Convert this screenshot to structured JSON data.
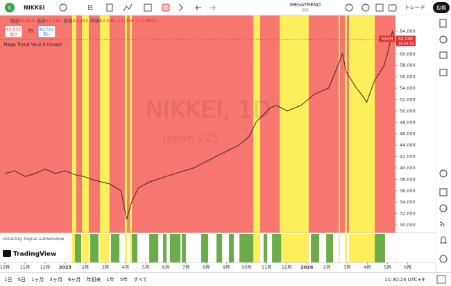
{
  "toolbar": {
    "avatar": "K",
    "symbol": "NIKKEI",
    "timeframe": "日",
    "layout_name": "MEGATREND",
    "save_status": "保存",
    "trade": "トレード",
    "publish": "投稿"
  },
  "legend": {
    "ohlc": [
      {
        "label": "始値",
        "value": "63,644"
      },
      {
        "label": "高値",
        "value": "63,784"
      },
      {
        "label": "安値",
        "value": "62,462"
      },
      {
        "label": "終値",
        "value": "62,548"
      }
    ],
    "change": "−1,266 (−1.98%)",
    "sell_price": "62,532",
    "sell": "売り",
    "spread": "20",
    "buy_price": "62,552",
    "buy": "買い",
    "indicator": "Mega Trend Ver2.0 (close)"
  },
  "watermark": {
    "symbol": "NIKKEI, 1D",
    "description": "Japan 225"
  },
  "chart_data": {
    "type": "line",
    "x": [
      0,
      0.5,
      1,
      1.5,
      2,
      2.5,
      3,
      3.5,
      3.9,
      4.5,
      5.2,
      5.77,
      6.05,
      6.29,
      6.63,
      7.15,
      8,
      9.38,
      10.76,
      11.62,
      12.13,
      12.47,
      13.16,
      13.5,
      14.02,
      14.71,
      15.4,
      16.08,
      16.43,
      16.77,
      16.94,
      17.11,
      17.46,
      17.8,
      17.97,
      18.32,
      18.66,
      18.83,
      19.0,
      19.25,
      19.38
    ],
    "series": [
      {
        "color": "#2a2a2a",
        "values": [
          39000,
          39500,
          38500,
          39000,
          39800,
          39000,
          39500,
          38800,
          38500,
          37800,
          37200,
          36000,
          31000,
          34000,
          36500,
          37500,
          38500,
          40000,
          42500,
          44000,
          45500,
          48000,
          50500,
          51000,
          50000,
          51000,
          53000,
          54000,
          57000,
          60000,
          57000,
          56000,
          54000,
          52500,
          51500,
          55000,
          57000,
          58000,
          60000,
          64000,
          62548
        ]
      }
    ],
    "xlim": [
      -0.24,
      19.4
    ],
    "ylim": [
      28660,
      66800
    ],
    "xticks": [
      {
        "value": 0,
        "label": "10月"
      },
      {
        "value": 1,
        "label": "11月"
      },
      {
        "value": 2,
        "label": "12月"
      },
      {
        "value": 3,
        "label": "2025"
      },
      {
        "value": 4,
        "label": "2月"
      },
      {
        "value": 5,
        "label": "3月"
      },
      {
        "value": 6,
        "label": "4月"
      },
      {
        "value": 7,
        "label": "5月"
      },
      {
        "value": 8,
        "label": "6月"
      },
      {
        "value": 9,
        "label": "7月"
      },
      {
        "value": 10,
        "label": "8月"
      },
      {
        "value": 11,
        "label": "9月"
      },
      {
        "value": 12,
        "label": "10月"
      },
      {
        "value": 13,
        "label": "11月"
      },
      {
        "value": 14,
        "label": "12月"
      },
      {
        "value": 15,
        "label": "2026"
      },
      {
        "value": 16,
        "label": "2月"
      },
      {
        "value": 17,
        "label": "3月"
      },
      {
        "value": 18,
        "label": "4月"
      },
      {
        "value": 19,
        "label": "5月"
      },
      {
        "value": 20,
        "label": "6月"
      }
    ],
    "yticks": [
      {
        "value": 30000,
        "label": "30,000"
      },
      {
        "value": 32000,
        "label": "32,000"
      },
      {
        "value": 34000,
        "label": "34,000"
      },
      {
        "value": 36000,
        "label": "36,000"
      },
      {
        "value": 38000,
        "label": "38,000"
      },
      {
        "value": 40000,
        "label": "40,000"
      },
      {
        "value": 42000,
        "label": "42,000"
      },
      {
        "value": 44000,
        "label": "44,000"
      },
      {
        "value": 46000,
        "label": "46,000"
      },
      {
        "value": 48000,
        "label": "48,000"
      },
      {
        "value": 50000,
        "label": "50,000"
      },
      {
        "value": 52000,
        "label": "52,000"
      },
      {
        "value": 54000,
        "label": "54,000"
      },
      {
        "value": 56000,
        "label": "56,000"
      },
      {
        "value": 58000,
        "label": "58,000"
      },
      {
        "value": 60000,
        "label": "60,000"
      },
      {
        "value": 62000,
        "label": "62,000"
      },
      {
        "value": 64000,
        "label": "64,000"
      }
    ],
    "background_color": "#f7766f",
    "band_color": "#fdee5c",
    "bands": [
      [
        3.34,
        3.55
      ],
      [
        3.83,
        4.17
      ],
      [
        4.72,
        5.2
      ],
      [
        5.96,
        6.07
      ],
      [
        6.2,
        6.31
      ],
      [
        12.34,
        12.68
      ],
      [
        13.65,
        15.09
      ],
      [
        16.58,
        16.64
      ],
      [
        16.89,
        16.99
      ],
      [
        17.09,
        18.37
      ]
    ],
    "signal_color": "#6aab4a",
    "signal_bands": [
      [
        3.48,
        3.79
      ],
      [
        4.24,
        4.65
      ],
      [
        5.27,
        5.69
      ],
      [
        6.31,
        6.58
      ],
      [
        7.17,
        7.62
      ],
      [
        7.86,
        8.03
      ],
      [
        8.2,
        8.72
      ],
      [
        8.79,
        8.99
      ],
      [
        9.75,
        10.1
      ],
      [
        10.51,
        10.79
      ],
      [
        11.13,
        11.37
      ],
      [
        11.65,
        12.34
      ],
      [
        12.85,
        13.03
      ],
      [
        13.27,
        13.72
      ],
      [
        15.2,
        15.61
      ],
      [
        15.96,
        16.3
      ],
      [
        18.37,
        18.88
      ]
    ],
    "price_tag": "62,548",
    "price_tag_symbol": "NIKKEI",
    "countdown": "18:29:15"
  },
  "subwindow": {
    "title": "Volatility Signal subwindow"
  },
  "logo": "TradingView",
  "bottom_bar": {
    "ranges": [
      "1日",
      "5日",
      "1ヶ月",
      "3ヶ月",
      "6ヶ月",
      "年初来",
      "1年",
      "5年",
      "すべて"
    ],
    "clock": "11:30:24 UTC+9"
  }
}
